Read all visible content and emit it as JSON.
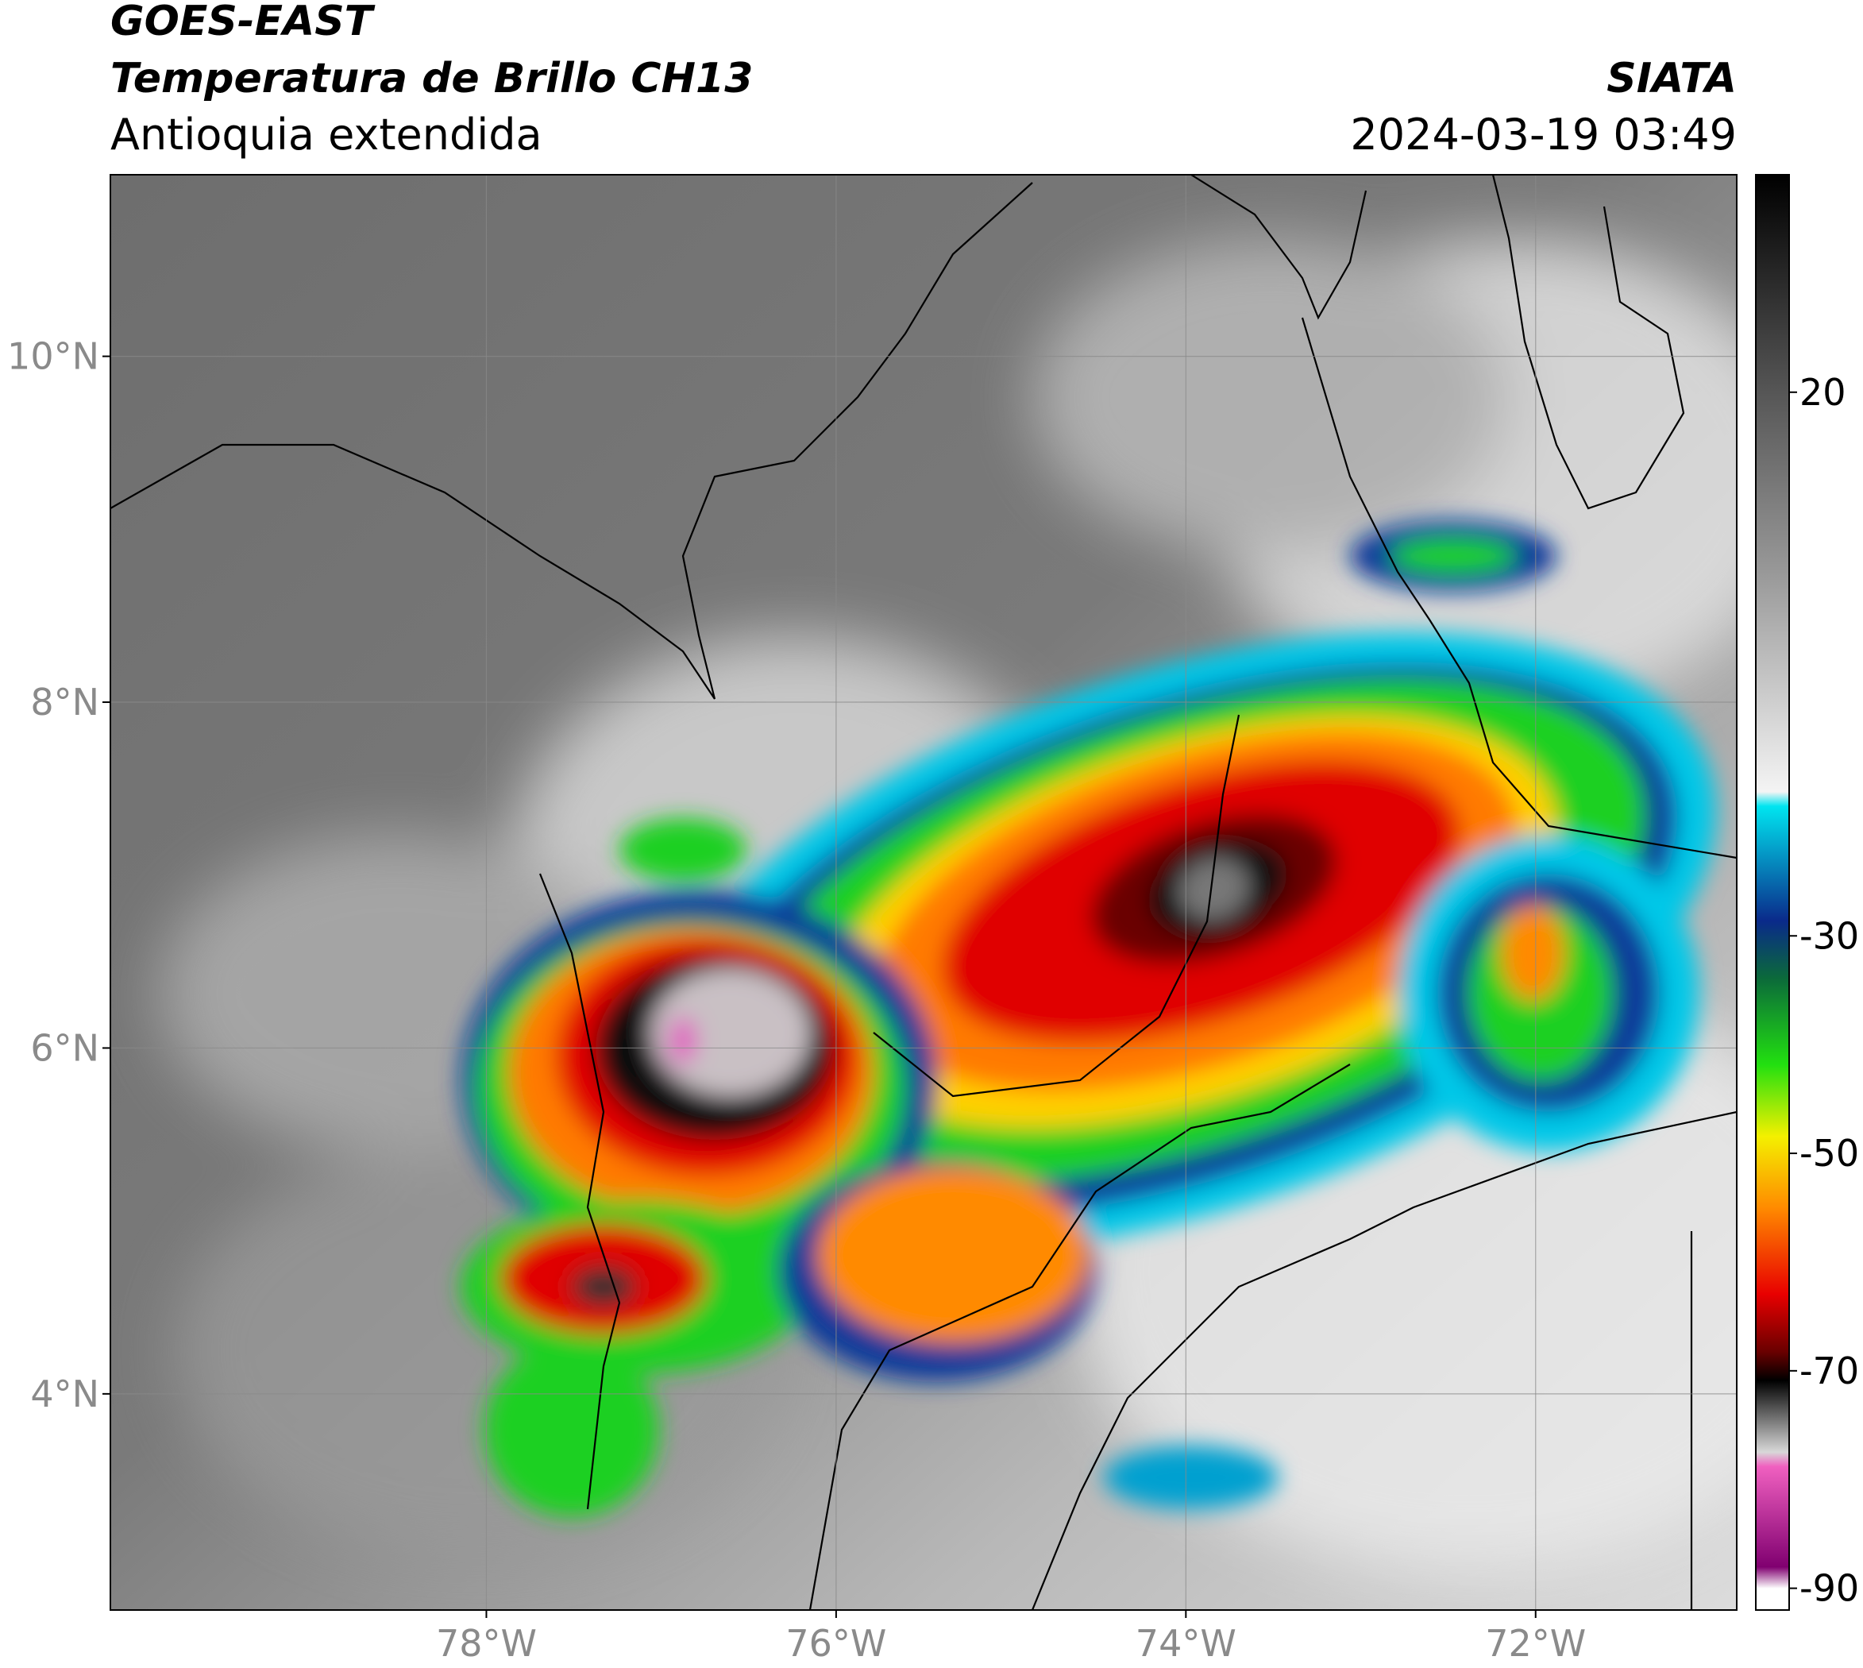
{
  "header": {
    "title": "GOES-EAST",
    "subtitle": "Temperatura de Brillo CH13",
    "region": "Antioquia extendida",
    "source": "SIATA",
    "datetime": "2024-03-19 03:49"
  },
  "map": {
    "xlim": [
      -80.15,
      -70.85
    ],
    "ylim": [
      2.75,
      11.05
    ],
    "xticks": [
      {
        "value": -78,
        "label": "78°W"
      },
      {
        "value": -76,
        "label": "76°W"
      },
      {
        "value": -74,
        "label": "74°W"
      },
      {
        "value": -72,
        "label": "72°W"
      }
    ],
    "yticks": [
      {
        "value": 4,
        "label": "4°N"
      },
      {
        "value": 6,
        "label": "6°N"
      },
      {
        "value": 8,
        "label": "8°N"
      },
      {
        "value": 10,
        "label": "10°N"
      }
    ],
    "grid": true
  },
  "colorbar": {
    "lim": [
      -92,
      40
    ],
    "ticks": [
      20,
      -30,
      -50,
      -70,
      -90
    ]
  }
}
